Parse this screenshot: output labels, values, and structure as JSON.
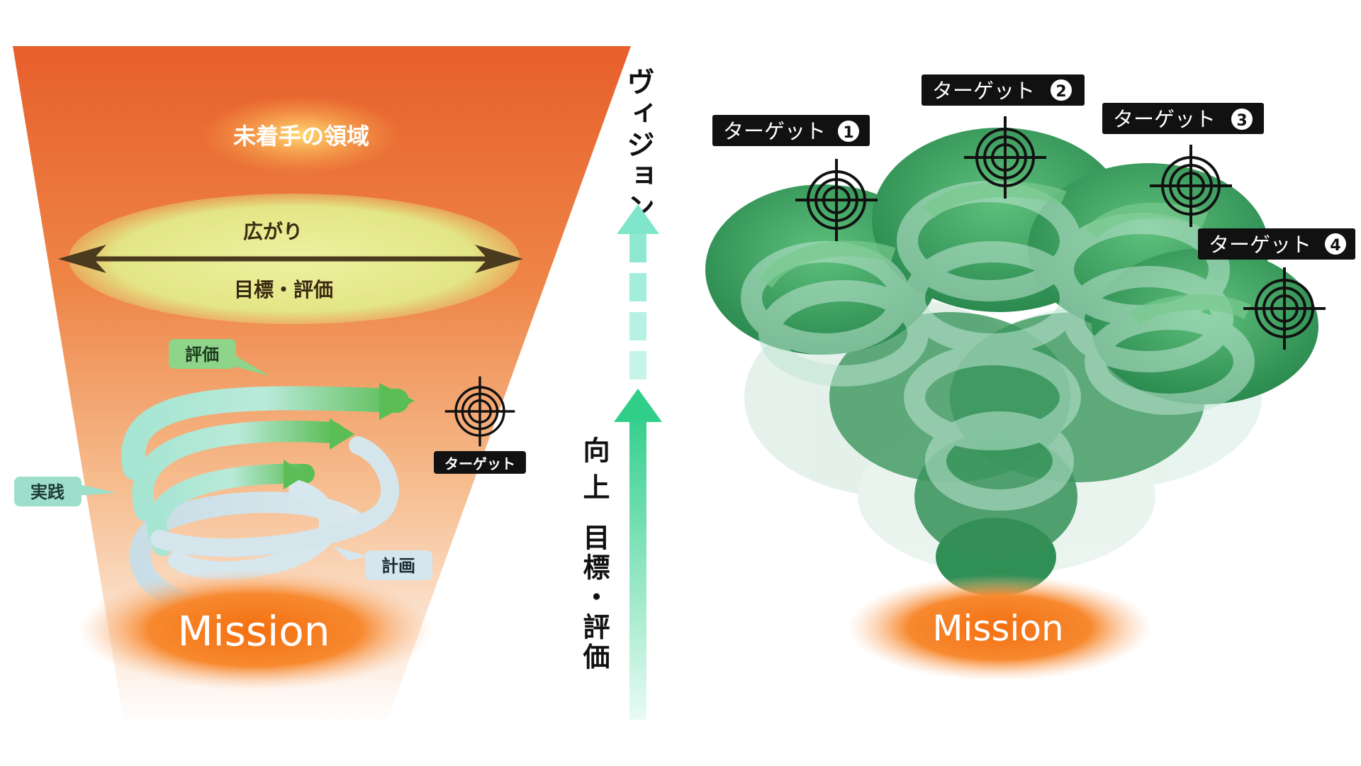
{
  "left": {
    "unexplored_label": "未着手の領域",
    "spread_label": "広がり",
    "goal_eval_label": "目標・評価",
    "eval_tag": "評価",
    "practice_tag": "実践",
    "plan_tag": "計画",
    "target_tag": "ターゲット",
    "mission_label": "Mission"
  },
  "middle": {
    "vision_label": "ヴィジョン",
    "improve_label": "向上",
    "goal_eval_vertical": "目標・評価"
  },
  "right": {
    "targets": [
      {
        "label": "ターゲット",
        "number": "1"
      },
      {
        "label": "ターゲット",
        "number": "2"
      },
      {
        "label": "ターゲット",
        "number": "3"
      },
      {
        "label": "ターゲット",
        "number": "4"
      }
    ],
    "mission_label": "Mission"
  },
  "colors": {
    "funnel_top": "#e8622e",
    "funnel_bottom": "#ffffff",
    "ellipse": "#e6e98a",
    "arrow_dark": "#4a3a1e",
    "spiral_mint": "#9edfcc",
    "spiral_green": "#5bbf5b",
    "mission_orange": "#f57a1e",
    "vision_arrow": "#3dd39a",
    "tree_green": "#2f8f55"
  }
}
